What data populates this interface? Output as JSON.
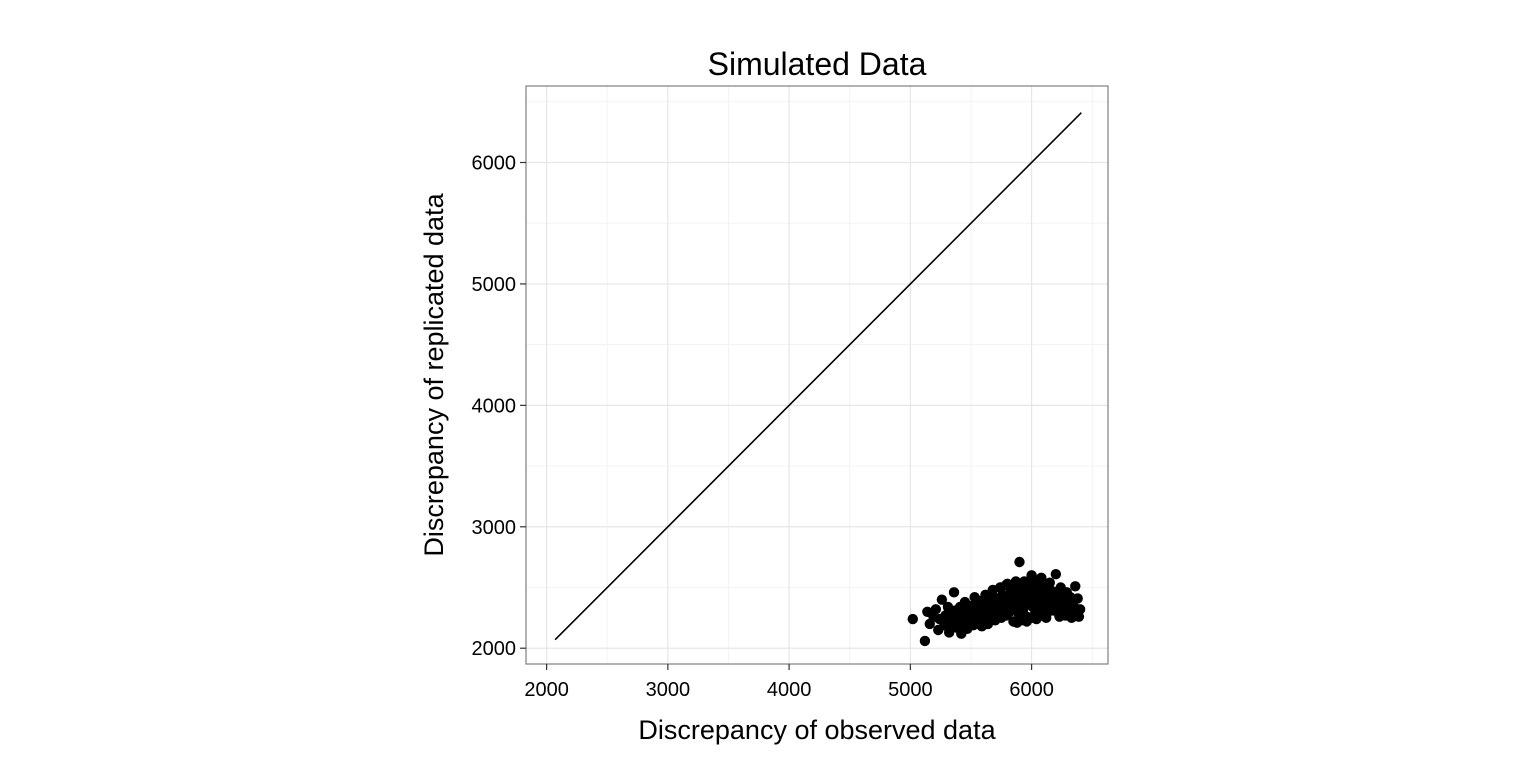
{
  "chart_data": {
    "type": "scatter",
    "title": "Simulated Data",
    "xlabel": "Discrepancy of observed data",
    "ylabel": "Discrepancy of replicated data",
    "xlim": [
      1830,
      6630
    ],
    "ylim": [
      1870,
      6630
    ],
    "x_ticks": [
      2000,
      3000,
      4000,
      5000,
      6000
    ],
    "y_ticks": [
      2000,
      3000,
      4000,
      5000,
      6000
    ],
    "x_tick_labels": [
      "2000",
      "3000",
      "4000",
      "5000",
      "6000"
    ],
    "y_tick_labels": [
      "2000",
      "3000",
      "4000",
      "5000",
      "6000"
    ],
    "grid": true,
    "reference_line": {
      "x": [
        2070,
        6410
      ],
      "y": [
        2070,
        6410
      ]
    },
    "points": {
      "x": [
        5020,
        5120,
        5140,
        5160,
        5190,
        5210,
        5230,
        5240,
        5260,
        5280,
        5290,
        5300,
        5310,
        5320,
        5330,
        5340,
        5350,
        5360,
        5370,
        5380,
        5390,
        5400,
        5410,
        5420,
        5430,
        5440,
        5450,
        5460,
        5470,
        5480,
        5490,
        5500,
        5510,
        5520,
        5530,
        5540,
        5550,
        5560,
        5570,
        5580,
        5590,
        5600,
        5610,
        5620,
        5630,
        5640,
        5650,
        5660,
        5670,
        5680,
        5690,
        5700,
        5710,
        5720,
        5730,
        5740,
        5750,
        5760,
        5770,
        5780,
        5790,
        5800,
        5810,
        5820,
        5830,
        5840,
        5850,
        5860,
        5870,
        5880,
        5890,
        5900,
        5910,
        5920,
        5930,
        5940,
        5950,
        5960,
        5970,
        5980,
        5990,
        6000,
        6010,
        6020,
        6030,
        6040,
        6050,
        6060,
        6070,
        6080,
        6090,
        6100,
        6110,
        6120,
        6130,
        6140,
        6150,
        6160,
        6170,
        6180,
        6190,
        6200,
        6210,
        6220,
        6230,
        6240,
        6250,
        6260,
        6270,
        6280,
        6290,
        6300,
        6310,
        6320,
        6330,
        6340,
        6350,
        6360,
        6370,
        6380,
        6390,
        6400,
        5420,
        5460,
        5500,
        5540,
        5580,
        5620,
        5660,
        5700,
        5740,
        5780,
        5820,
        5860,
        5900,
        5940,
        5980,
        6020,
        6060,
        6100,
        6140,
        6180,
        6220,
        6260,
        5880,
        5920,
        5960,
        6000,
        6040,
        6080,
        6120,
        5750,
        5790,
        5830,
        5870,
        5910,
        5950,
        5990,
        6030,
        6070,
        6110,
        6150,
        5650,
        5690,
        5730,
        5770,
        5810,
        5850,
        5890,
        5930,
        5970,
        6010,
        6050,
        6090,
        6130,
        6170,
        6210,
        5550,
        5590,
        5630,
        5670,
        5710,
        5750,
        5790,
        5830,
        5870,
        5910,
        5950,
        5990,
        6030,
        6070,
        6110,
        6150,
        6190,
        6230,
        6270,
        6310,
        5350,
        5400,
        5450,
        5500,
        5900,
        5960,
        6020,
        6080,
        6140,
        6200,
        6260,
        6320
      ],
      "y": [
        2240,
        2060,
        2300,
        2200,
        2260,
        2320,
        2150,
        2240,
        2400,
        2190,
        2270,
        2220,
        2340,
        2130,
        2290,
        2250,
        2200,
        2460,
        2310,
        2170,
        2260,
        2230,
        2340,
        2120,
        2290,
        2200,
        2380,
        2250,
        2160,
        2310,
        2280,
        2230,
        2350,
        2190,
        2420,
        2270,
        2210,
        2320,
        2260,
        2390,
        2180,
        2300,
        2250,
        2440,
        2350,
        2200,
        2290,
        2400,
        2270,
        2480,
        2330,
        2230,
        2410,
        2290,
        2360,
        2500,
        2250,
        2440,
        2320,
        2380,
        2270,
        2530,
        2410,
        2300,
        2460,
        2350,
        2220,
        2500,
        2390,
        2430,
        2290,
        2710,
        2370,
        2460,
        2320,
        2550,
        2410,
        2260,
        2490,
        2380,
        2440,
        2600,
        2340,
        2470,
        2290,
        2520,
        2400,
        2460,
        2330,
        2580,
        2420,
        2360,
        2500,
        2280,
        2450,
        2390,
        2540,
        2310,
        2470,
        2400,
        2360,
        2610,
        2300,
        2440,
        2260,
        2500,
        2380,
        2330,
        2430,
        2270,
        2460,
        2370,
        2300,
        2420,
        2250,
        2390,
        2340,
        2510,
        2280,
        2410,
        2260,
        2320,
        2250,
        2280,
        2310,
        2290,
        2330,
        2360,
        2340,
        2380,
        2350,
        2400,
        2420,
        2390,
        2450,
        2430,
        2470,
        2440,
        2420,
        2450,
        2410,
        2380,
        2360,
        2330,
        2210,
        2230,
        2220,
        2250,
        2240,
        2270,
        2250,
        2500,
        2520,
        2490,
        2550,
        2510,
        2530,
        2560,
        2540,
        2520,
        2500,
        2480,
        2330,
        2360,
        2350,
        2390,
        2370,
        2410,
        2400,
        2380,
        2430,
        2410,
        2440,
        2420,
        2400,
        2380,
        2350,
        2260,
        2280,
        2300,
        2290,
        2320,
        2340,
        2330,
        2360,
        2350,
        2380,
        2370,
        2400,
        2390,
        2380,
        2360,
        2350,
        2330,
        2310,
        2300,
        2280,
        2180,
        2200,
        2170,
        2210,
        2460,
        2490,
        2470,
        2450,
        2430,
        2400,
        2380,
        2350
      ]
    }
  }
}
